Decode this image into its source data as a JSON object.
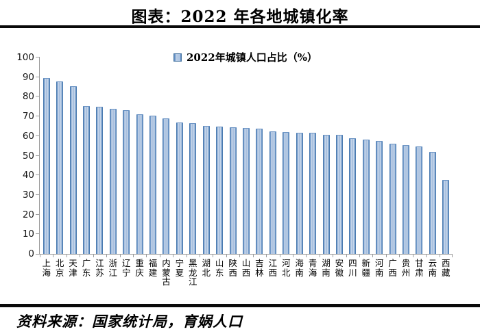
{
  "title": "图表：2022 年各地城镇化率",
  "footer": {
    "source_text": "资料来源：国家统计局，育娲人口"
  },
  "legend": {
    "label": "2022年城镇人口占比（%）",
    "marker": "blue-square"
  },
  "colors": {
    "bar_edge": "#4f81bd",
    "bar_fill_light": "#cfdcee",
    "bar_fill_mid": "#88a9d2",
    "axis_line": "#9b9b9b",
    "divider": "#0a0a0a",
    "text": "#000000"
  },
  "chart_data": {
    "type": "bar",
    "title": "2022年城镇人口占比（%）",
    "categories": [
      "上海",
      "北京",
      "天津",
      "广东",
      "江苏",
      "浙江",
      "辽宁",
      "重庆",
      "福建",
      "内蒙古",
      "宁夏",
      "黑龙江",
      "湖北",
      "山东",
      "陕西",
      "山西",
      "吉林",
      "江西",
      "河北",
      "海南",
      "青海",
      "湖南",
      "安徽",
      "四川",
      "新疆",
      "河南",
      "广西",
      "贵州",
      "甘肃",
      "云南",
      "西藏"
    ],
    "values": [
      89.3,
      87.6,
      85.1,
      74.8,
      74.4,
      73.4,
      72.8,
      70.9,
      70.1,
      68.6,
      66.4,
      66.2,
      64.7,
      64.5,
      64.0,
      63.9,
      63.4,
      62.1,
      61.7,
      61.5,
      61.4,
      60.3,
      60.2,
      58.4,
      57.9,
      57.1,
      55.7,
      55.1,
      54.2,
      51.7,
      37.4
    ],
    "xlabel": "",
    "ylabel": "",
    "ylim": [
      0,
      100
    ],
    "yticks": [
      0,
      10,
      20,
      30,
      40,
      50,
      60,
      70,
      80,
      90,
      100
    ],
    "grid": false,
    "legend_position": "top-center",
    "bar_color": "#4f81bd"
  }
}
